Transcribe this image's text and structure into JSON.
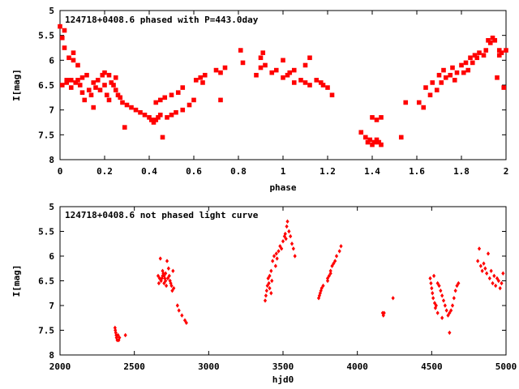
{
  "chart_data": [
    {
      "type": "scatter",
      "title": "124718+0408.6 phased with P=443.0day",
      "xlabel": "phase",
      "ylabel": "I[mag]",
      "xlim": [
        0,
        2
      ],
      "ylim": [
        8,
        5
      ],
      "y_inverted": true,
      "grid": false,
      "marker_color": "#ff0000",
      "xticks": [
        "0",
        "0.2",
        "0.4",
        "0.6",
        "0.8",
        "1",
        "1.2",
        "1.4",
        "1.6",
        "1.8",
        "2"
      ],
      "xtick_values": [
        0,
        0.2,
        0.4,
        0.6,
        0.8,
        1,
        1.2,
        1.4,
        1.6,
        1.8,
        2
      ],
      "yticks": [
        "5",
        "5.5",
        "6",
        "6.5",
        "7",
        "7.5",
        "8"
      ],
      "ytick_values": [
        5,
        5.5,
        6,
        6.5,
        7,
        7.5,
        8
      ],
      "points": [
        [
          0.0,
          5.32
        ],
        [
          0.01,
          5.55
        ],
        [
          0.01,
          6.5
        ],
        [
          0.02,
          5.4
        ],
        [
          0.03,
          6.45
        ],
        [
          0.02,
          5.75
        ],
        [
          0.04,
          5.95
        ],
        [
          0.05,
          6.4
        ],
        [
          0.05,
          6.55
        ],
        [
          0.06,
          5.85
        ],
        [
          0.07,
          6.45
        ],
        [
          0.08,
          6.4
        ],
        [
          0.09,
          6.5
        ],
        [
          0.1,
          6.35
        ],
        [
          0.1,
          6.65
        ],
        [
          0.11,
          6.8
        ],
        [
          0.12,
          6.3
        ],
        [
          0.13,
          6.6
        ],
        [
          0.14,
          6.7
        ],
        [
          0.15,
          6.95
        ],
        [
          0.15,
          6.45
        ],
        [
          0.16,
          6.55
        ],
        [
          0.17,
          6.4
        ],
        [
          0.18,
          6.6
        ],
        [
          0.19,
          6.3
        ],
        [
          0.2,
          6.5
        ],
        [
          0.21,
          6.7
        ],
        [
          0.22,
          6.8
        ],
        [
          0.23,
          6.45
        ],
        [
          0.24,
          6.5
        ],
        [
          0.25,
          6.6
        ],
        [
          0.26,
          6.7
        ],
        [
          0.27,
          6.75
        ],
        [
          0.28,
          6.85
        ],
        [
          0.3,
          6.9
        ],
        [
          0.32,
          6.95
        ],
        [
          0.34,
          7.0
        ],
        [
          0.36,
          7.05
        ],
        [
          0.38,
          7.1
        ],
        [
          0.4,
          7.15
        ],
        [
          0.41,
          7.2
        ],
        [
          0.42,
          7.25
        ],
        [
          0.43,
          7.2
        ],
        [
          0.44,
          7.15
        ],
        [
          0.45,
          7.1
        ],
        [
          0.29,
          7.35
        ],
        [
          0.43,
          6.85
        ],
        [
          0.45,
          6.8
        ],
        [
          0.47,
          6.75
        ],
        [
          0.5,
          6.7
        ],
        [
          0.53,
          6.65
        ],
        [
          0.55,
          6.55
        ],
        [
          0.48,
          7.15
        ],
        [
          0.5,
          7.1
        ],
        [
          0.52,
          7.05
        ],
        [
          0.55,
          7.0
        ],
        [
          0.58,
          6.9
        ],
        [
          0.6,
          6.8
        ],
        [
          0.46,
          7.55
        ],
        [
          0.06,
          6.0
        ],
        [
          0.08,
          6.1
        ],
        [
          0.2,
          6.25
        ],
        [
          0.22,
          6.3
        ],
        [
          0.25,
          6.35
        ],
        [
          0.03,
          6.4
        ],
        [
          0.61,
          6.4
        ],
        [
          0.63,
          6.35
        ],
        [
          0.65,
          6.3
        ],
        [
          0.64,
          6.45
        ],
        [
          0.7,
          6.2
        ],
        [
          0.72,
          6.25
        ],
        [
          0.74,
          6.15
        ],
        [
          0.72,
          6.8
        ],
        [
          0.81,
          5.8
        ],
        [
          0.82,
          6.05
        ],
        [
          0.88,
          6.3
        ],
        [
          0.9,
          6.15
        ],
        [
          0.92,
          6.1
        ],
        [
          0.95,
          6.25
        ],
        [
          0.9,
          5.95
        ],
        [
          0.91,
          5.85
        ],
        [
          0.97,
          6.2
        ],
        [
          1.0,
          6.35
        ],
        [
          1.02,
          6.3
        ],
        [
          1.05,
          6.2
        ],
        [
          1.0,
          6.0
        ],
        [
          1.03,
          6.25
        ],
        [
          1.08,
          6.4
        ],
        [
          1.1,
          6.45
        ],
        [
          1.05,
          6.45
        ],
        [
          1.1,
          6.1
        ],
        [
          1.12,
          6.5
        ],
        [
          1.15,
          6.4
        ],
        [
          1.17,
          6.45
        ],
        [
          1.18,
          6.5
        ],
        [
          1.2,
          6.55
        ],
        [
          1.22,
          6.7
        ],
        [
          1.12,
          5.95
        ],
        [
          1.35,
          7.45
        ],
        [
          1.37,
          7.55
        ],
        [
          1.38,
          7.65
        ],
        [
          1.39,
          7.6
        ],
        [
          1.4,
          7.7
        ],
        [
          1.41,
          7.65
        ],
        [
          1.42,
          7.6
        ],
        [
          1.43,
          7.65
        ],
        [
          1.44,
          7.7
        ],
        [
          1.4,
          7.15
        ],
        [
          1.42,
          7.2
        ],
        [
          1.44,
          7.15
        ],
        [
          1.53,
          7.55
        ],
        [
          1.55,
          6.85
        ],
        [
          1.61,
          6.85
        ],
        [
          1.63,
          6.95
        ],
        [
          1.64,
          6.55
        ],
        [
          1.66,
          6.7
        ],
        [
          1.67,
          6.45
        ],
        [
          1.69,
          6.6
        ],
        [
          1.7,
          6.3
        ],
        [
          1.71,
          6.45
        ],
        [
          1.72,
          6.2
        ],
        [
          1.73,
          6.35
        ],
        [
          1.75,
          6.3
        ],
        [
          1.76,
          6.15
        ],
        [
          1.77,
          6.4
        ],
        [
          1.78,
          6.25
        ],
        [
          1.8,
          6.1
        ],
        [
          1.81,
          6.25
        ],
        [
          1.82,
          6.05
        ],
        [
          1.83,
          6.2
        ],
        [
          1.84,
          5.95
        ],
        [
          1.85,
          6.05
        ],
        [
          1.86,
          5.9
        ],
        [
          1.87,
          5.95
        ],
        [
          1.88,
          5.85
        ],
        [
          1.9,
          5.9
        ],
        [
          1.91,
          5.8
        ],
        [
          1.92,
          5.6
        ],
        [
          1.93,
          5.65
        ],
        [
          1.94,
          5.55
        ],
        [
          1.95,
          5.6
        ],
        [
          1.96,
          6.35
        ],
        [
          1.97,
          5.8
        ],
        [
          1.98,
          5.85
        ],
        [
          1.99,
          6.55
        ],
        [
          2.0,
          5.8
        ],
        [
          1.97,
          5.9
        ]
      ]
    },
    {
      "type": "scatter",
      "title": "124718+0408.6 not phased light curve",
      "xlabel": "hjd0",
      "ylabel": "I[mag]",
      "xlim": [
        2000,
        5000
      ],
      "ylim": [
        8,
        5
      ],
      "y_inverted": true,
      "grid": false,
      "marker_color": "#ff0000",
      "xticks": [
        "2000",
        "2500",
        "3000",
        "3500",
        "4000",
        "4500",
        "5000"
      ],
      "xtick_values": [
        2000,
        2500,
        3000,
        3500,
        4000,
        4500,
        5000
      ],
      "yticks": [
        "5",
        "5.5",
        "6",
        "6.5",
        "7",
        "7.5",
        "8"
      ],
      "ytick_values": [
        5,
        5.5,
        6,
        6.5,
        7,
        7.5,
        8
      ],
      "points": [
        [
          2370,
          7.45
        ],
        [
          2375,
          7.55
        ],
        [
          2380,
          7.65
        ],
        [
          2385,
          7.7
        ],
        [
          2390,
          7.6
        ],
        [
          2395,
          7.7
        ],
        [
          2400,
          7.65
        ],
        [
          2372,
          7.5
        ],
        [
          2378,
          7.6
        ],
        [
          2440,
          7.6
        ],
        [
          2660,
          6.4
        ],
        [
          2665,
          6.55
        ],
        [
          2670,
          6.45
        ],
        [
          2675,
          6.05
        ],
        [
          2680,
          6.5
        ],
        [
          2685,
          6.45
        ],
        [
          2690,
          6.4
        ],
        [
          2695,
          6.35
        ],
        [
          2700,
          6.55
        ],
        [
          2705,
          6.45
        ],
        [
          2710,
          6.5
        ],
        [
          2715,
          6.6
        ],
        [
          2720,
          6.1
        ],
        [
          2725,
          6.45
        ],
        [
          2730,
          6.25
        ],
        [
          2735,
          6.4
        ],
        [
          2740,
          6.5
        ],
        [
          2745,
          6.55
        ],
        [
          2750,
          6.6
        ],
        [
          2755,
          6.7
        ],
        [
          2760,
          6.3
        ],
        [
          2765,
          6.65
        ],
        [
          2790,
          7.0
        ],
        [
          2800,
          7.1
        ],
        [
          2820,
          7.2
        ],
        [
          2840,
          7.3
        ],
        [
          2850,
          7.35
        ],
        [
          2690,
          6.3
        ],
        [
          2700,
          6.4
        ],
        [
          2710,
          6.35
        ],
        [
          3380,
          6.9
        ],
        [
          3385,
          6.8
        ],
        [
          3390,
          6.7
        ],
        [
          3395,
          6.6
        ],
        [
          3400,
          6.45
        ],
        [
          3405,
          6.55
        ],
        [
          3410,
          6.4
        ],
        [
          3420,
          6.3
        ],
        [
          3425,
          6.5
        ],
        [
          3430,
          6.1
        ],
        [
          3440,
          6.0
        ],
        [
          3450,
          6.2
        ],
        [
          3455,
          5.95
        ],
        [
          3460,
          6.05
        ],
        [
          3470,
          5.9
        ],
        [
          3480,
          5.8
        ],
        [
          3490,
          5.85
        ],
        [
          3500,
          5.7
        ],
        [
          3510,
          5.6
        ],
        [
          3515,
          5.55
        ],
        [
          3520,
          5.65
        ],
        [
          3525,
          5.4
        ],
        [
          3530,
          5.3
        ],
        [
          3540,
          5.5
        ],
        [
          3550,
          5.6
        ],
        [
          3560,
          5.75
        ],
        [
          3570,
          5.85
        ],
        [
          3580,
          6.0
        ],
        [
          3410,
          6.65
        ],
        [
          3420,
          6.75
        ],
        [
          3740,
          6.85
        ],
        [
          3745,
          6.8
        ],
        [
          3750,
          6.75
        ],
        [
          3755,
          6.7
        ],
        [
          3760,
          6.65
        ],
        [
          3770,
          6.6
        ],
        [
          3800,
          6.45
        ],
        [
          3810,
          6.4
        ],
        [
          3820,
          6.3
        ],
        [
          3830,
          6.2
        ],
        [
          3840,
          6.15
        ],
        [
          3850,
          6.1
        ],
        [
          3860,
          6.0
        ],
        [
          3880,
          5.9
        ],
        [
          3890,
          5.8
        ],
        [
          3820,
          6.35
        ],
        [
          3800,
          6.5
        ],
        [
          4170,
          7.15
        ],
        [
          4175,
          7.2
        ],
        [
          4180,
          7.15
        ],
        [
          4240,
          6.85
        ],
        [
          4490,
          6.45
        ],
        [
          4495,
          6.55
        ],
        [
          4500,
          6.65
        ],
        [
          4505,
          6.75
        ],
        [
          4510,
          6.85
        ],
        [
          4515,
          6.4
        ],
        [
          4520,
          6.95
        ],
        [
          4530,
          7.0
        ],
        [
          4540,
          6.55
        ],
        [
          4550,
          6.6
        ],
        [
          4560,
          6.7
        ],
        [
          4570,
          6.8
        ],
        [
          4580,
          6.9
        ],
        [
          4590,
          7.0
        ],
        [
          4600,
          7.1
        ],
        [
          4610,
          7.2
        ],
        [
          4620,
          7.15
        ],
        [
          4630,
          7.1
        ],
        [
          4640,
          7.0
        ],
        [
          4650,
          6.85
        ],
        [
          4660,
          6.7
        ],
        [
          4670,
          6.6
        ],
        [
          4680,
          6.55
        ],
        [
          4620,
          7.55
        ],
        [
          4570,
          7.25
        ],
        [
          4540,
          7.15
        ],
        [
          4525,
          7.05
        ],
        [
          4810,
          6.1
        ],
        [
          4820,
          5.85
        ],
        [
          4830,
          6.2
        ],
        [
          4840,
          6.3
        ],
        [
          4850,
          6.15
        ],
        [
          4860,
          6.25
        ],
        [
          4870,
          6.35
        ],
        [
          4880,
          5.95
        ],
        [
          4890,
          6.45
        ],
        [
          4900,
          6.3
        ],
        [
          4910,
          6.55
        ],
        [
          4920,
          6.4
        ],
        [
          4930,
          6.6
        ],
        [
          4940,
          6.45
        ],
        [
          4950,
          6.5
        ],
        [
          4960,
          6.65
        ],
        [
          4970,
          6.55
        ],
        [
          4980,
          6.35
        ]
      ]
    }
  ]
}
